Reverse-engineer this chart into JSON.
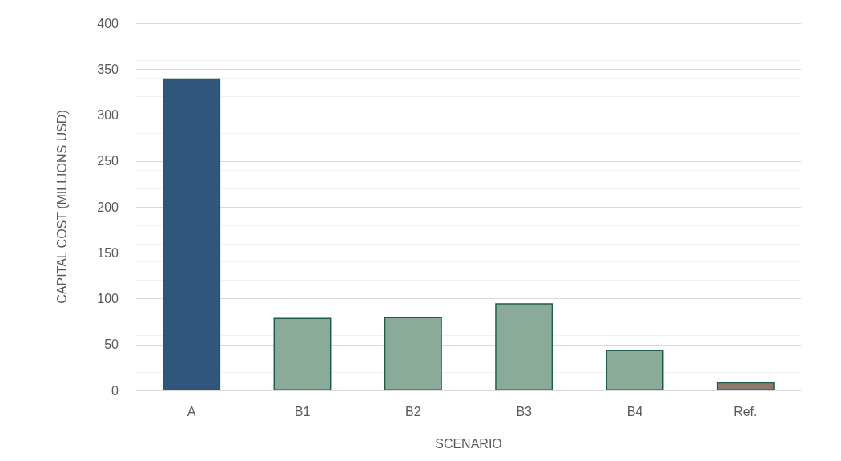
{
  "chart_data": {
    "type": "bar",
    "xlabel": "SCENARIO",
    "ylabel": "CAPITAL COST (MILLIONS USD)",
    "categories": [
      "A",
      "B1",
      "B2",
      "B3",
      "B4",
      "Ref."
    ],
    "values": [
      340,
      79,
      80,
      95,
      44,
      9
    ],
    "colors": [
      "#30567e",
      "#8aab9a",
      "#8aab9a",
      "#8aab9a",
      "#8aab9a",
      "#8c7b6a"
    ],
    "ylim": [
      0,
      400
    ],
    "yticks": [
      0,
      50,
      100,
      150,
      200,
      250,
      300,
      350,
      400
    ],
    "grid": "y"
  }
}
